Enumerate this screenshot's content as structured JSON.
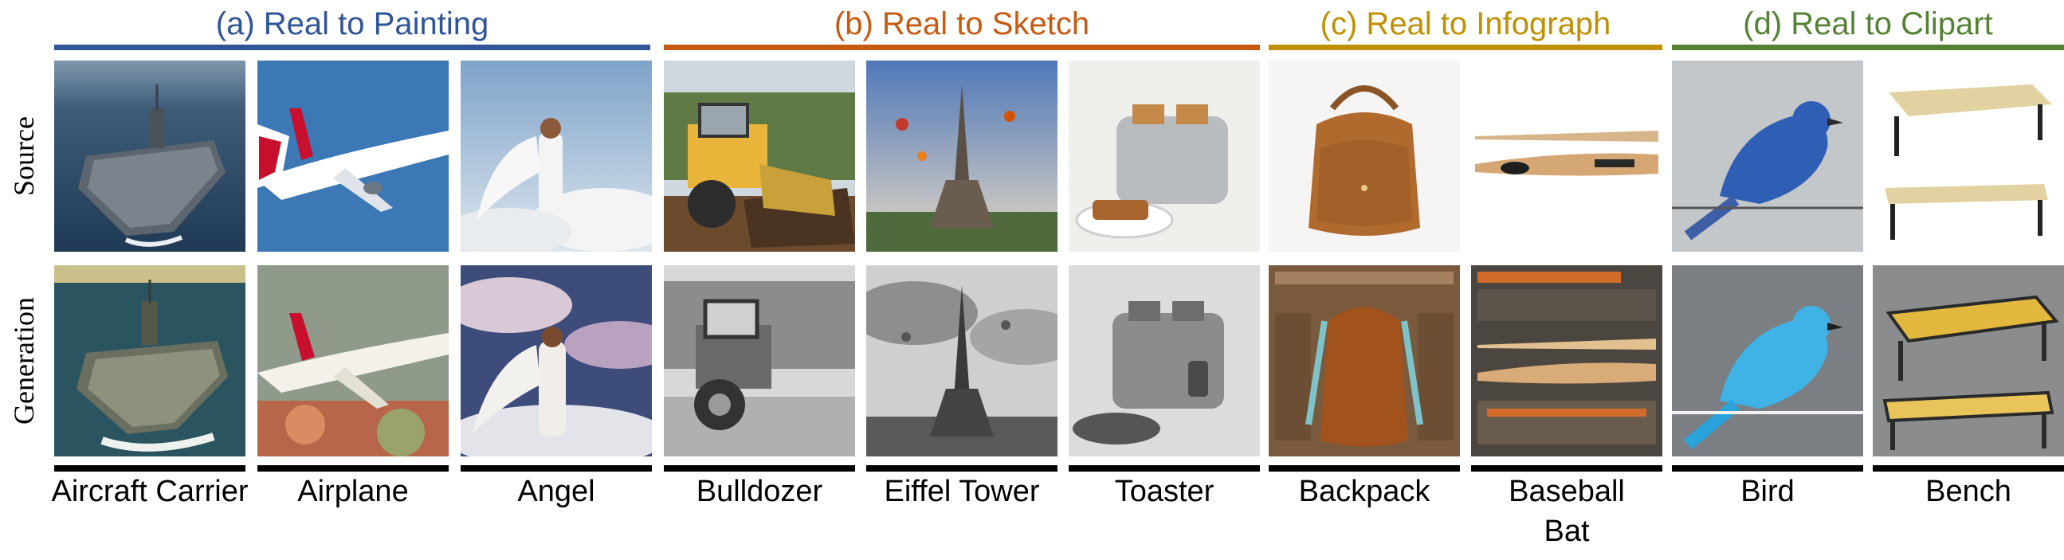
{
  "groups": [
    {
      "title": "(a) Real to Painting",
      "color": "#2f5597"
    },
    {
      "title": "(b) Real to Sketch",
      "color": "#c55a11"
    },
    {
      "title": "(c) Real to Infograph",
      "color": "#bf9000"
    },
    {
      "title": "(d) Real to Clipart",
      "color": "#548235"
    }
  ],
  "rows": [
    "Source",
    "Generation"
  ],
  "items": [
    {
      "label": "Aircraft Carrier"
    },
    {
      "label": "Airplane"
    },
    {
      "label": "Angel"
    },
    {
      "label": "Bulldozer"
    },
    {
      "label": "Eiffel Tower"
    },
    {
      "label": "Toaster"
    },
    {
      "label": "Backpack"
    },
    {
      "label": "Baseball Bat"
    },
    {
      "label": "Bird"
    },
    {
      "label": "Bench"
    }
  ]
}
